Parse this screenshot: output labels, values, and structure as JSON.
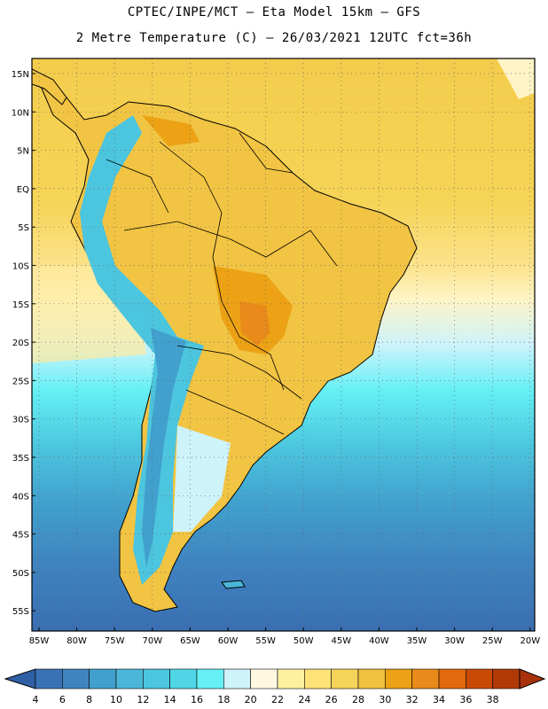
{
  "title_line1": "CPTEC/INPE/MCT –  Eta Model 15km – GFS",
  "title_line2": "2 Metre Temperature (C) – 26/03/2021 12UTC fct=36h",
  "lat_labels": [
    "15N",
    "10N",
    "5N",
    "EQ",
    "5S",
    "10S",
    "15S",
    "20S",
    "25S",
    "30S",
    "35S",
    "40S",
    "45S",
    "50S",
    "55S"
  ],
  "lon_labels": [
    "85W",
    "80W",
    "75W",
    "70W",
    "65W",
    "60W",
    "55W",
    "50W",
    "45W",
    "40W",
    "35W",
    "30W",
    "25W",
    "20W"
  ],
  "colorbar": {
    "labels": [
      "4",
      "6",
      "8",
      "10",
      "12",
      "14",
      "16",
      "18",
      "20",
      "22",
      "24",
      "26",
      "28",
      "30",
      "32",
      "34",
      "36",
      "38"
    ],
    "colors": [
      "#3a73b5",
      "#3f84c0",
      "#41a0cd",
      "#4bb7d8",
      "#4cc5de",
      "#50d6e6",
      "#64f0f5",
      "#cef3fb",
      "#fff8e1",
      "#fff0a0",
      "#fde277",
      "#f6d45a",
      "#efc13f",
      "#eca214",
      "#e98a1b",
      "#e06a0d",
      "#c84a05",
      "#b03a05"
    ]
  }
}
